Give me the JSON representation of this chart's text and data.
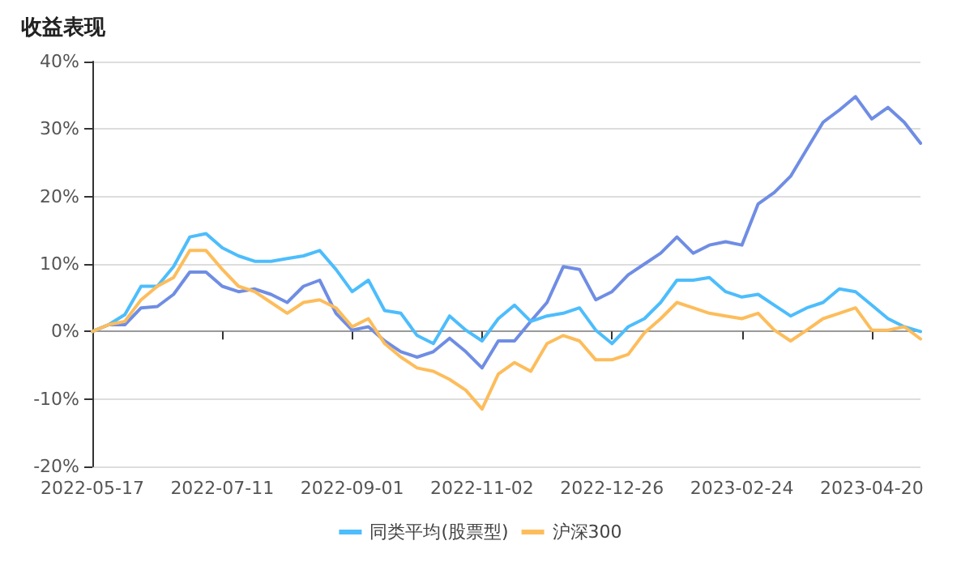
{
  "chart_data": {
    "type": "line",
    "title": "收益表现",
    "categories": [
      "2022-05-17",
      null,
      null,
      null,
      null,
      null,
      null,
      null,
      "2022-07-11",
      null,
      null,
      null,
      null,
      null,
      null,
      null,
      "2022-09-01",
      null,
      null,
      null,
      null,
      null,
      null,
      null,
      "2022-11-02",
      null,
      null,
      null,
      null,
      null,
      null,
      null,
      "2022-12-26",
      null,
      null,
      null,
      null,
      null,
      null,
      null,
      "2023-02-24",
      null,
      null,
      null,
      null,
      null,
      null,
      null,
      "2023-04-20",
      null,
      null,
      null
    ],
    "series": [
      {
        "color": "#6f8de4",
        "values": [
          0,
          1,
          1,
          3.5,
          3.7,
          5.5,
          8.8,
          8.8,
          6.7,
          5.9,
          6.3,
          5.5,
          4.3,
          6.7,
          7.6,
          2.7,
          0.2,
          0.7,
          -1.4,
          -3,
          -3.8,
          -3,
          -1,
          -3,
          -5.4,
          -1.4,
          -1.4,
          1.5,
          4.3,
          9.6,
          9.2,
          4.7,
          5.9,
          8.4,
          10,
          11.6,
          14,
          11.6,
          12.8,
          13.3,
          12.8,
          18.9,
          20.6,
          23,
          27,
          31,
          32.8,
          34.8,
          31.5,
          33.2,
          31,
          27.9
        ]
      },
      {
        "name": "同类平均(股票型)",
        "color": "#4dbdfc",
        "values": [
          0,
          1,
          2.5,
          6.7,
          6.7,
          9.6,
          14,
          14.5,
          12.4,
          11.2,
          10.4,
          10.4,
          10.8,
          11.2,
          12,
          9.2,
          5.9,
          7.6,
          3.1,
          2.7,
          -0.6,
          -1.8,
          2.3,
          0.2,
          -1.4,
          1.9,
          3.9,
          1.5,
          2.3,
          2.7,
          3.5,
          0.2,
          -1.8,
          0.7,
          1.9,
          4.3,
          7.6,
          7.6,
          8,
          5.9,
          5.1,
          5.5,
          3.9,
          2.3,
          3.5,
          4.3,
          6.3,
          5.9,
          3.9,
          1.9,
          0.7,
          0
        ]
      },
      {
        "name": "沪深300",
        "color": "#fdbd5c",
        "values": [
          0,
          1,
          1.5,
          4.7,
          6.7,
          8,
          12,
          12,
          9.2,
          6.7,
          5.9,
          4.3,
          2.7,
          4.3,
          4.7,
          3.5,
          0.7,
          1.9,
          -1.8,
          -3.8,
          -5.4,
          -5.9,
          -7.1,
          -8.7,
          -11.5,
          -6.3,
          -4.6,
          -5.9,
          -1.8,
          -0.6,
          -1.4,
          -4.2,
          -4.2,
          -3.4,
          -0.2,
          1.9,
          4.3,
          3.5,
          2.7,
          2.3,
          1.9,
          2.7,
          0.2,
          -1.4,
          0.2,
          1.9,
          2.7,
          3.5,
          0.2,
          0.2,
          0.7,
          -1.1
        ]
      }
    ],
    "ylim": [
      -20,
      40
    ],
    "yticks": [
      {
        "value": -20,
        "label": "-20%"
      },
      {
        "value": -10,
        "label": "-10%"
      },
      {
        "value": 0,
        "label": "0%"
      },
      {
        "value": 10,
        "label": "10%"
      },
      {
        "value": 20,
        "label": "20%"
      },
      {
        "value": 30,
        "label": "30%"
      },
      {
        "value": 40,
        "label": "40%"
      }
    ],
    "grid": "y",
    "legend": "bottom",
    "marker": "none",
    "line_style": "solid"
  }
}
